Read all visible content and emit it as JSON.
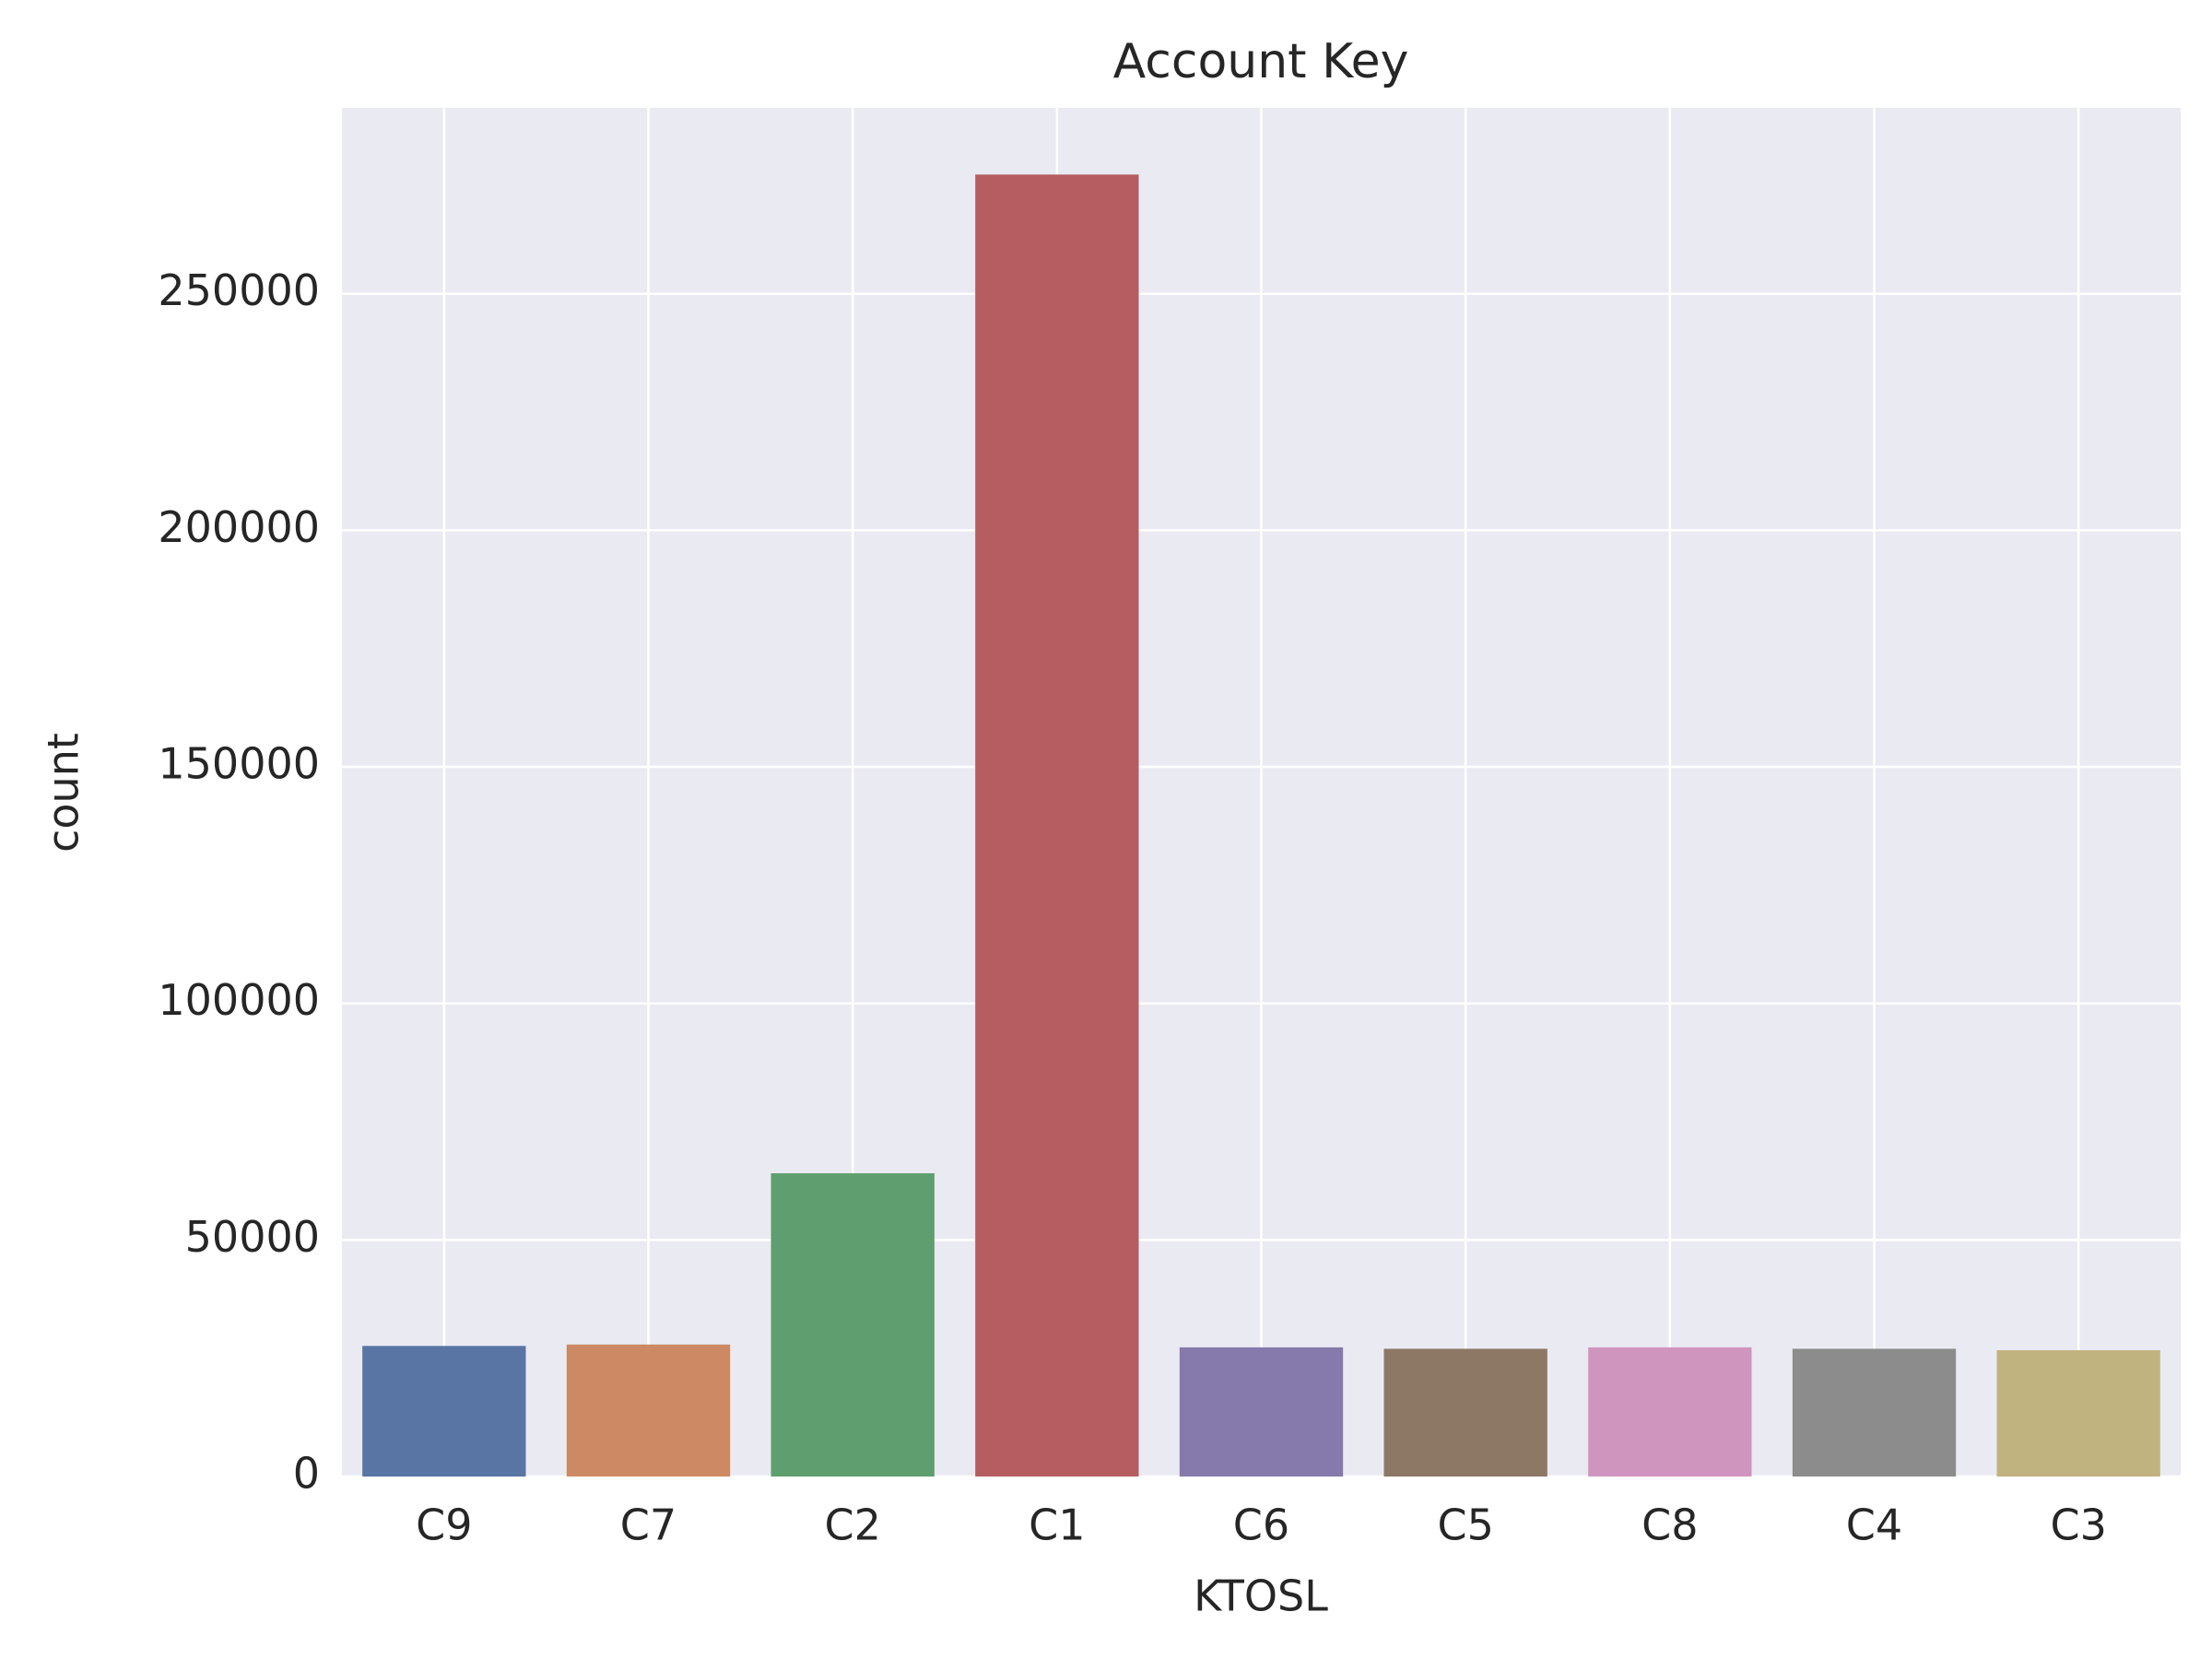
{
  "chart_data": {
    "type": "bar",
    "title": "Account Key",
    "x_label": "KTOSL",
    "y_label": "count",
    "categories": [
      "C9",
      "C7",
      "C2",
      "C1",
      "C6",
      "C5",
      "C8",
      "C4",
      "C3"
    ],
    "values": [
      27600,
      27900,
      64100,
      275200,
      27300,
      27000,
      27300,
      27000,
      26700
    ],
    "colors": [
      "#5875a4",
      "#cc8963",
      "#5f9e6e",
      "#b55d60",
      "#857aab",
      "#8d7866",
      "#d095bf",
      "#8c8c8c",
      "#c1b37f"
    ],
    "ylim": [
      0,
      289300
    ],
    "yticks": [
      0,
      50000,
      100000,
      150000,
      200000,
      250000
    ],
    "grid": true
  }
}
